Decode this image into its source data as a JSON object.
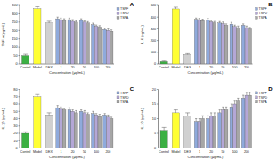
{
  "chart_data": [
    {
      "type": "bar",
      "title": "A",
      "x_label": "Concentration (μg/mL)",
      "y_label": "TNF-α (pg/mL)",
      "categories": [
        "Control",
        "Model",
        "DEX",
        "1",
        "20",
        "50",
        "100",
        "200"
      ],
      "values": [
        50,
        330,
        245,
        null,
        null,
        null,
        null,
        null
      ],
      "errors": [
        8,
        12,
        10,
        null,
        null,
        null,
        null,
        null
      ],
      "colors": [
        "#3cb043",
        "#ffff33",
        "#d0d0d0",
        null,
        null,
        null,
        null,
        null
      ],
      "series": [
        {
          "name": "TSPF",
          "color": "#8faadc",
          "values": [
            null,
            null,
            null,
            270,
            265,
            260,
            235,
            205
          ],
          "errors": [
            null,
            null,
            null,
            10,
            9,
            10,
            9,
            8
          ]
        },
        {
          "name": "TSPD",
          "color": "#b4a7d6",
          "values": [
            null,
            null,
            null,
            265,
            255,
            250,
            225,
            200
          ],
          "errors": [
            null,
            null,
            null,
            9,
            10,
            9,
            8,
            9
          ]
        },
        {
          "name": "TSPA",
          "color": "#a6a6a6",
          "values": [
            null,
            null,
            null,
            260,
            250,
            245,
            220,
            195
          ],
          "errors": [
            null,
            null,
            null,
            10,
            9,
            8,
            9,
            8
          ]
        }
      ],
      "ylim": [
        0,
        350
      ],
      "yticks": [
        0,
        50,
        100,
        150,
        200,
        250,
        300,
        350
      ],
      "legend": "right"
    },
    {
      "type": "bar",
      "title": "B",
      "x_label": "Concentration (μg/mL)",
      "y_label": "IL-6 (pg/mL)",
      "categories": [
        "Control",
        "Model",
        "DEX",
        "1",
        "20",
        "50",
        "100",
        "200"
      ],
      "values": [
        20,
        470,
        80,
        null,
        null,
        null,
        null,
        null
      ],
      "errors": [
        5,
        15,
        8,
        null,
        null,
        null,
        null,
        null
      ],
      "colors": [
        "#3cb043",
        "#ffff33",
        "#d0d0d0",
        null,
        null,
        null,
        null,
        null
      ],
      "series": [
        {
          "name": "TSPF",
          "color": "#8faadc",
          "values": [
            null,
            null,
            null,
            380,
            375,
            350,
            340,
            330
          ],
          "errors": [
            null,
            null,
            null,
            12,
            14,
            12,
            15,
            12
          ]
        },
        {
          "name": "TSPD",
          "color": "#b4a7d6",
          "values": [
            null,
            null,
            null,
            375,
            360,
            345,
            320,
            310
          ],
          "errors": [
            null,
            null,
            null,
            14,
            12,
            13,
            12,
            14
          ]
        },
        {
          "name": "TSPA",
          "color": "#a6a6a6",
          "values": [
            null,
            null,
            null,
            370,
            350,
            330,
            310,
            300
          ],
          "errors": [
            null,
            null,
            null,
            12,
            13,
            12,
            14,
            12
          ]
        }
      ],
      "ylim": [
        0,
        500
      ],
      "yticks": [
        0,
        100,
        200,
        300,
        400,
        500
      ],
      "legend": "right"
    },
    {
      "type": "bar",
      "title": "C",
      "x_label": "Concentration (μg/mL)",
      "y_label": "IL-1β (pg/mL)",
      "categories": [
        "Control",
        "Model",
        "DEX",
        "1",
        "20",
        "50",
        "100",
        "200"
      ],
      "values": [
        20,
        70,
        45,
        null,
        null,
        null,
        null,
        null
      ],
      "errors": [
        2,
        3,
        3,
        null,
        null,
        null,
        null,
        null
      ],
      "colors": [
        "#3cb043",
        "#ffff33",
        "#d0d0d0",
        null,
        null,
        null,
        null,
        null
      ],
      "series": [
        {
          "name": "TSPF",
          "color": "#8faadc",
          "values": [
            null,
            null,
            null,
            55,
            52,
            50,
            47,
            45
          ],
          "errors": [
            null,
            null,
            null,
            3,
            3,
            2,
            3,
            2
          ]
        },
        {
          "name": "TSPD",
          "color": "#b4a7d6",
          "values": [
            null,
            null,
            null,
            53,
            50,
            48,
            45,
            42
          ],
          "errors": [
            null,
            null,
            null,
            3,
            2,
            3,
            2,
            3
          ]
        },
        {
          "name": "TSPA",
          "color": "#a6a6a6",
          "values": [
            null,
            null,
            null,
            52,
            48,
            46,
            43,
            40
          ],
          "errors": [
            null,
            null,
            null,
            2,
            3,
            2,
            3,
            2
          ]
        }
      ],
      "ylim": [
        0,
        80
      ],
      "yticks": [
        0,
        10,
        20,
        30,
        40,
        50,
        60,
        70,
        80
      ],
      "legend": "right"
    },
    {
      "type": "bar",
      "title": "D",
      "x_label": "Concentration (μg/mL)",
      "y_label": "IL-10 (pg/mL)",
      "categories": [
        "Control",
        "Model",
        "DEX",
        "1",
        "20",
        "50",
        "100",
        "200"
      ],
      "values": [
        6,
        12,
        11,
        null,
        null,
        null,
        null,
        null
      ],
      "errors": [
        1,
        1,
        1,
        null,
        null,
        null,
        null,
        null
      ],
      "colors": [
        "#3cb043",
        "#ffff33",
        "#d0d0d0",
        null,
        null,
        null,
        null,
        null
      ],
      "series": [
        {
          "name": "TSPF",
          "color": "#8faadc",
          "values": [
            null,
            null,
            null,
            9,
            10,
            12,
            14,
            17
          ],
          "errors": [
            null,
            null,
            null,
            1,
            1,
            1,
            1,
            1
          ]
        },
        {
          "name": "TSPD",
          "color": "#b4a7d6",
          "values": [
            null,
            null,
            null,
            9,
            11,
            13,
            15,
            18
          ],
          "errors": [
            null,
            null,
            null,
            1,
            1,
            1,
            1,
            1
          ]
        },
        {
          "name": "TSPA",
          "color": "#a6a6a6",
          "values": [
            null,
            null,
            null,
            10,
            11,
            13,
            16,
            18
          ],
          "errors": [
            null,
            null,
            null,
            1,
            1,
            1,
            1,
            1
          ]
        }
      ],
      "ylim": [
        0,
        20
      ],
      "yticks": [
        0,
        5,
        10,
        15,
        20
      ],
      "legend": "right"
    }
  ]
}
